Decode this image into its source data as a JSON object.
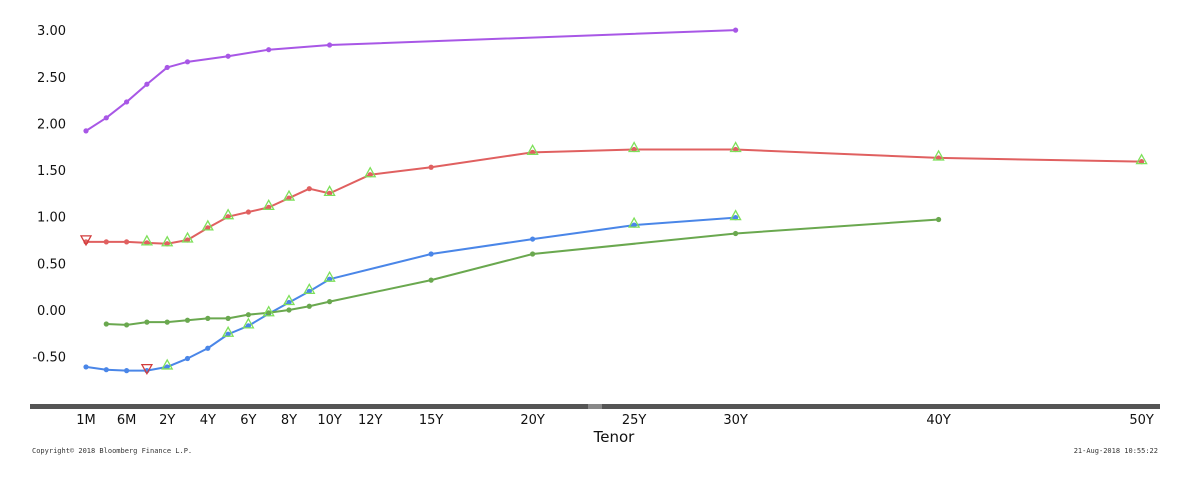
{
  "chart_data": {
    "type": "line",
    "title": "",
    "xlabel": "Tenor",
    "ylabel": "",
    "ylim": [
      -0.85,
      3.1
    ],
    "y_ticks": [
      "3.00",
      "2.50",
      "2.00",
      "1.50",
      "1.00",
      "0.50",
      "0.00",
      "-0.50"
    ],
    "y_tick_values": [
      3.0,
      2.5,
      2.0,
      1.5,
      1.0,
      0.5,
      0.0,
      -0.5
    ],
    "x_ticks": [
      "1M",
      "6M",
      "2Y",
      "4Y",
      "6Y",
      "8Y",
      "10Y",
      "12Y",
      "15Y",
      "20Y",
      "25Y",
      "30Y",
      "40Y",
      "50Y"
    ],
    "x_tick_values": [
      0,
      2,
      4,
      6,
      8,
      10,
      12,
      14,
      17,
      22,
      27,
      32,
      42,
      52
    ],
    "grid": false,
    "legend": "none",
    "series": [
      {
        "color": "#a857e6",
        "x": [
          0,
          1,
          2,
          3,
          4,
          5,
          7,
          9,
          12,
          32
        ],
        "values": [
          1.92,
          2.06,
          2.23,
          2.42,
          2.6,
          2.66,
          2.72,
          2.79,
          2.84,
          3.0
        ]
      },
      {
        "color": "#e06060",
        "x": [
          0,
          1,
          2,
          3,
          4,
          5,
          6,
          7,
          8,
          9,
          10,
          11,
          12,
          14,
          17,
          22,
          27,
          32,
          42,
          52
        ],
        "values": [
          0.73,
          0.73,
          0.73,
          0.72,
          0.71,
          0.75,
          0.88,
          1.0,
          1.05,
          1.1,
          1.2,
          1.3,
          1.25,
          1.45,
          1.53,
          1.69,
          1.72,
          1.72,
          1.63,
          1.59
        ]
      },
      {
        "color": "#4a86e8",
        "x": [
          0,
          1,
          2,
          3,
          4,
          5,
          6,
          7,
          8,
          9,
          10,
          11,
          12,
          17,
          22,
          27,
          32
        ],
        "values": [
          -0.61,
          -0.64,
          -0.65,
          -0.65,
          -0.61,
          -0.52,
          -0.41,
          -0.26,
          -0.17,
          -0.04,
          0.08,
          0.2,
          0.33,
          0.6,
          0.76,
          0.91,
          0.99
        ]
      },
      {
        "color": "#6aa84f",
        "x": [
          1,
          2,
          3,
          4,
          5,
          6,
          7,
          8,
          9,
          10,
          11,
          12,
          17,
          22,
          32,
          42
        ],
        "values": [
          -0.15,
          -0.16,
          -0.13,
          -0.13,
          -0.11,
          -0.09,
          -0.09,
          -0.05,
          -0.03,
          0.0,
          0.04,
          0.09,
          0.32,
          0.6,
          0.82,
          0.97
        ]
      }
    ],
    "green_triangle_markers": [
      {
        "series": 1,
        "x": [
          3,
          4,
          5,
          6,
          7,
          9,
          10,
          12,
          14,
          22,
          27,
          32,
          42,
          52
        ]
      },
      {
        "series": 2,
        "x": [
          4,
          7,
          8,
          9,
          10,
          11,
          12,
          27,
          32
        ]
      }
    ],
    "red_down_triangle_markers": [
      {
        "x": 0,
        "y": 0.73
      },
      {
        "x": 3,
        "y": -0.65
      }
    ]
  },
  "footer": {
    "copyright": "Copyright© 2018 Bloomberg Finance L.P.",
    "timestamp": "21-Aug-2018 10:55:22"
  }
}
